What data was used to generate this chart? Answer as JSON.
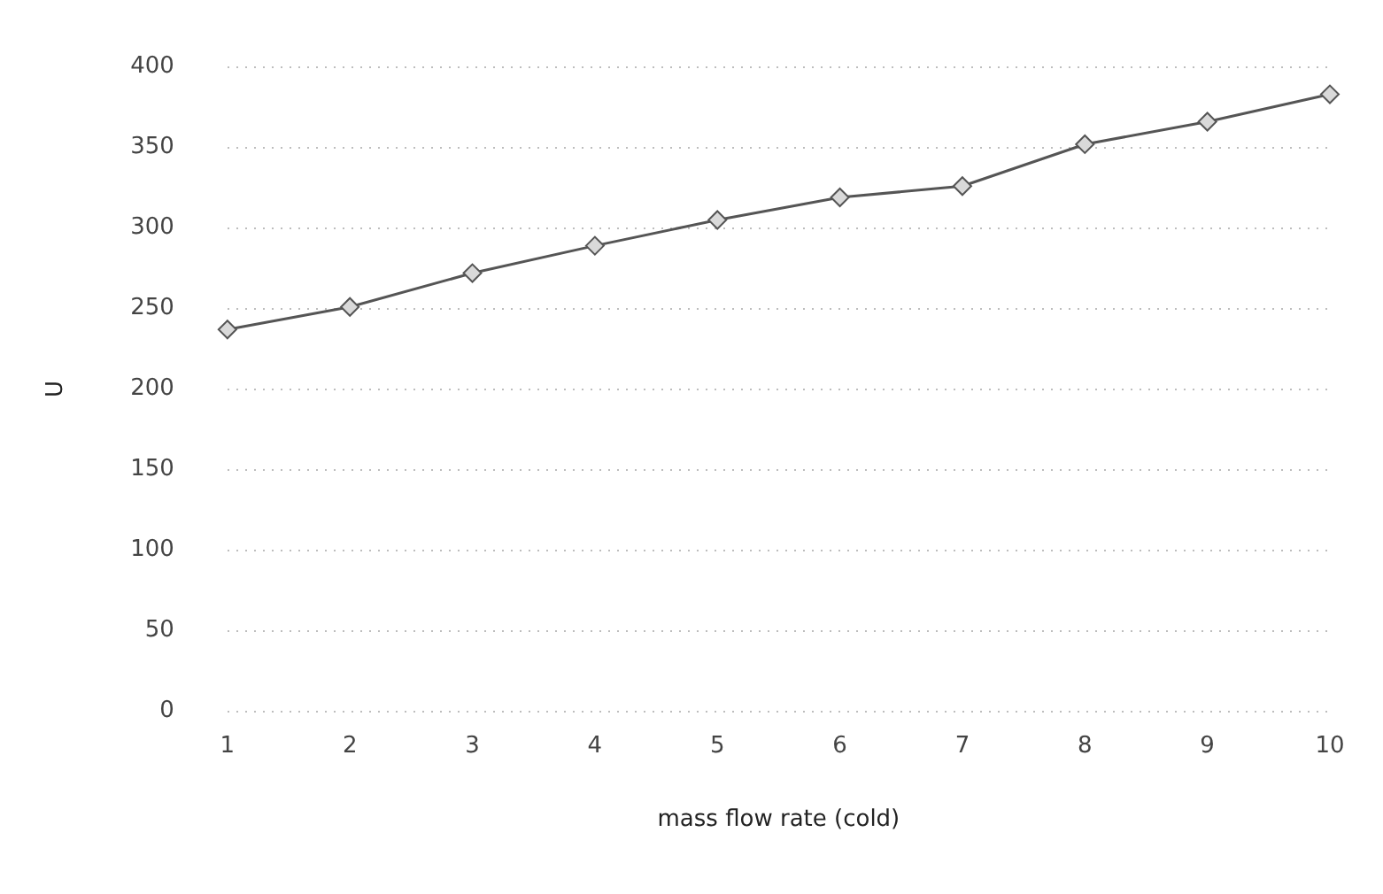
{
  "chart_data": {
    "type": "line",
    "xlabel": "mass flow rate (cold)",
    "ylabel": "U",
    "categories": [
      "1",
      "2",
      "3",
      "4",
      "5",
      "6",
      "7",
      "8",
      "9",
      "10"
    ],
    "series": [
      {
        "color": "#555555",
        "values": [
          237,
          251,
          272,
          289,
          305,
          319,
          326,
          352,
          366,
          383
        ]
      }
    ],
    "ylim": [
      0,
      400
    ],
    "yticks": [
      0,
      50,
      100,
      150,
      200,
      250,
      300,
      350,
      400
    ],
    "grid": "y",
    "marker": "diamond",
    "line_style": "solid",
    "legend": false
  }
}
